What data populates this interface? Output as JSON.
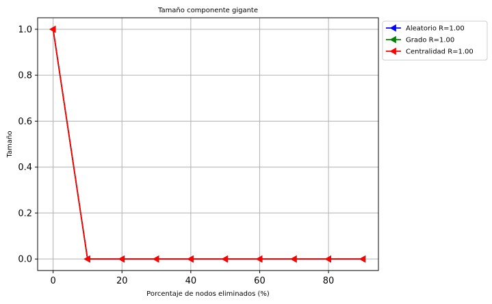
{
  "chart_data": {
    "type": "line",
    "title": "Tamaño componente gigante",
    "xlabel": "Porcentaje de nodos eliminados (%)",
    "ylabel": "Tamaño",
    "x": [
      0,
      10,
      20,
      30,
      40,
      50,
      60,
      70,
      80,
      90
    ],
    "xlim": [
      -4.5,
      94.5
    ],
    "ylim": [
      -0.05,
      1.05
    ],
    "xticks": [
      "0",
      "20",
      "40",
      "60",
      "80"
    ],
    "xtick_values": [
      0,
      20,
      40,
      60,
      80
    ],
    "yticks": [
      "0.0",
      "0.2",
      "0.4",
      "0.6",
      "0.8",
      "1.0"
    ],
    "ytick_values": [
      0.0,
      0.2,
      0.4,
      0.6,
      0.8,
      1.0
    ],
    "grid": true,
    "legend_position": "outside-top-right",
    "marker": "triangle-left",
    "series": [
      {
        "name": "Aleatorio R=1.00",
        "color": "#0000ff",
        "values": [
          1.0,
          0.0,
          0.0,
          0.0,
          0.0,
          0.0,
          0.0,
          0.0,
          0.0,
          0.0
        ]
      },
      {
        "name": "Grado R=1.00",
        "color": "#008000",
        "values": [
          1.0,
          0.0,
          0.0,
          0.0,
          0.0,
          0.0,
          0.0,
          0.0,
          0.0,
          0.0
        ]
      },
      {
        "name": "Centralidad R=1.00",
        "color": "#ff0000",
        "values": [
          1.0,
          0.0,
          0.0,
          0.0,
          0.0,
          0.0,
          0.0,
          0.0,
          0.0,
          0.0
        ]
      }
    ]
  }
}
